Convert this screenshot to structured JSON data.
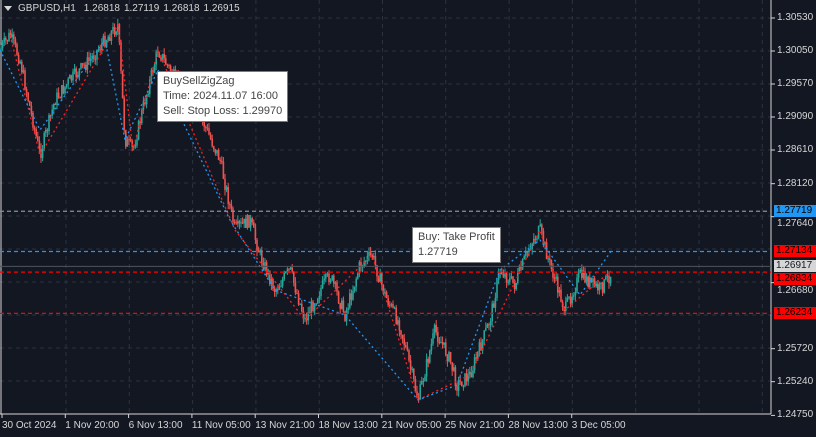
{
  "header": {
    "symbol": "GBPUSD,H1",
    "open": "1.26818",
    "high": "1.27119",
    "low": "1.26818",
    "close": "1.26915"
  },
  "tooltips": [
    {
      "lines": [
        "BuySellZigZag",
        "Time: 2024.11.07 16:00",
        "Sell: Stop Loss: 1.29970"
      ]
    },
    {
      "lines": [
        "Buy: Take Profit",
        "1.27719"
      ]
    }
  ],
  "chart_data": {
    "type": "candlestick",
    "symbol": "GBPUSD",
    "timeframe": "H1",
    "y_ticks": [
      "1.30530",
      "1.30050",
      "1.29570",
      "1.29090",
      "1.28610",
      "1.28120",
      "1.27640",
      "1.26680",
      "1.25720",
      "1.25240",
      "1.24750"
    ],
    "x_ticks": [
      "30 Oct 2024",
      "1 Nov 20:00",
      "6 Nov 13:00",
      "11 Nov 05:00",
      "13 Nov 21:00",
      "18 Nov 13:00",
      "21 Nov 05:00",
      "25 Nov 21:00",
      "28 Nov 13:00",
      "3 Dec 05:00"
    ],
    "price_levels": [
      {
        "value": "1.27719",
        "color": "#2196f3",
        "kind": "take-profit"
      },
      {
        "value": "1.27134",
        "color": "#ff0000",
        "line_color": "#2196f3"
      },
      {
        "value": "1.26917",
        "color": "#d6d6d6",
        "kind": "current"
      },
      {
        "value": "1.26834",
        "color": "#ff0000"
      },
      {
        "value": "1.26234",
        "color": "#ff0000"
      }
    ],
    "colors": {
      "bull": "#26a69a",
      "bear": "#ef5350",
      "background": "#131722",
      "grid": "#2e3240"
    }
  }
}
